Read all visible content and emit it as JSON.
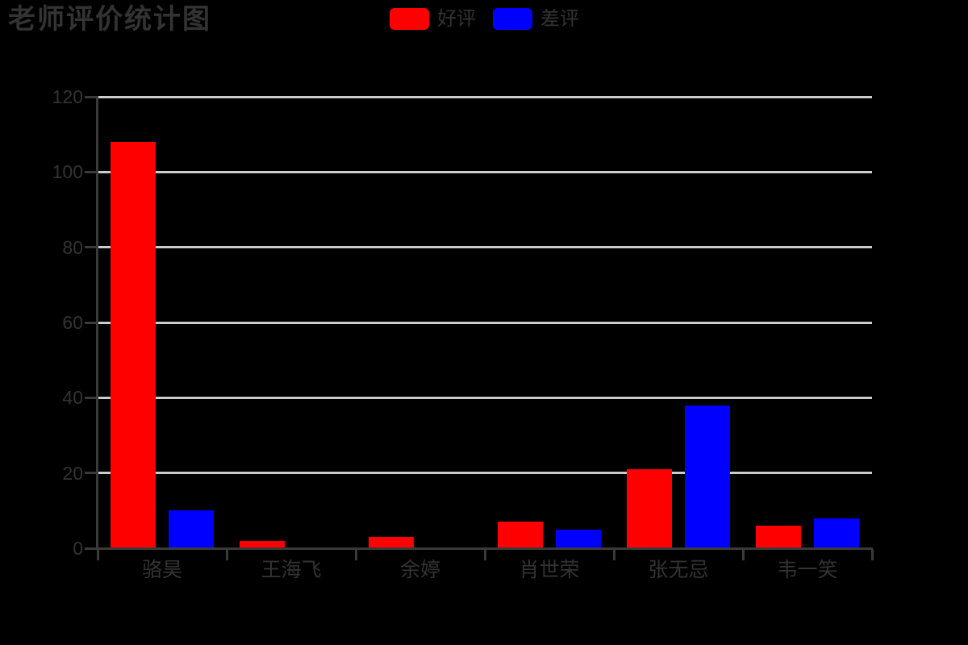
{
  "page": {
    "background": "#000000"
  },
  "header": {
    "title": "老师评价统计图"
  },
  "legend": {
    "items": [
      {
        "label": "好评",
        "color": "#ff0000"
      },
      {
        "label": "差评",
        "color": "#0000ff"
      }
    ]
  },
  "chart_data": {
    "type": "bar",
    "title": "老师评价统计图",
    "categories": [
      "骆昊",
      "王海飞",
      "余婷",
      "肖世荣",
      "张无忌",
      "韦一笑"
    ],
    "series": [
      {
        "name": "好评",
        "color": "#ff0000",
        "values": [
          108,
          2,
          3,
          7,
          21,
          6
        ]
      },
      {
        "name": "差评",
        "color": "#0000ff",
        "values": [
          10,
          0,
          0,
          5,
          38,
          8
        ]
      }
    ],
    "ylim": [
      0,
      120
    ],
    "yticks": [
      0,
      20,
      40,
      60,
      80,
      100,
      120
    ],
    "grid": true,
    "legend_position": "top-center",
    "colors": {
      "background": "#000000",
      "text": "#333333",
      "axis": "#3a3a3a",
      "gridline": "#cccccc"
    }
  }
}
